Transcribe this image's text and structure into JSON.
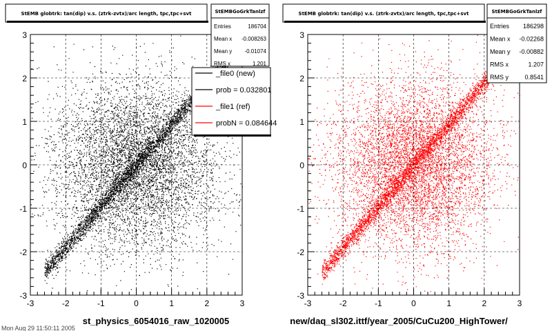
{
  "charts": [
    {
      "id": "left",
      "title": "StEMB globtrk: tan(dip) v.s. (ztrk-zvtx)/arc length, tpc,tpc+svt",
      "xlabel": "st_physics_6054016_raw_1020005",
      "stats": {
        "header": "StEMBGoGrkTanlzf",
        "rows": [
          {
            "label": "Entries",
            "value": "186704"
          },
          {
            "label": "Mean x",
            "value": "-0.008263"
          },
          {
            "label": "Mean y",
            "value": "-0.01074"
          },
          {
            "label": "RMS x",
            "value": "1.201"
          }
        ]
      },
      "legend": {
        "entries": [
          {
            "label": "_file0 (new)",
            "color": "#000000"
          },
          {
            "label": "prob = 0.032801",
            "color": "#000000"
          },
          {
            "label": "_file1 (ref)",
            "color": "#ff0000"
          },
          {
            "label": "probN = 0.084644",
            "color": "#ff0000"
          }
        ]
      },
      "point_color": "#000000"
    },
    {
      "id": "right",
      "title": "StEMB globtrk: tan(dip) v.s. (ztrk-zvtx)/arc length, tpc,tpc+svt",
      "xlabel": "new/daq_sl302.ittf/year_2005/CuCu200_HighTower/",
      "stats": {
        "header": "StEMBGoGrkTanlzf",
        "rows": [
          {
            "label": "Entries",
            "value": "186298"
          },
          {
            "label": "Mean x",
            "value": "-0.02268"
          },
          {
            "label": "Mean y",
            "value": "-0.00882"
          },
          {
            "label": "RMS x",
            "value": "1.207"
          },
          {
            "label": "RMS y",
            "value": "0.8541"
          }
        ]
      },
      "point_color": "#ff0000"
    }
  ],
  "footer_text": "Mon Aug 29 11:50:11 2005",
  "chart_data": [
    {
      "type": "scatter",
      "title": "StEMB globtrk: tan(dip) v.s. (ztrk-zvtx)/arc length, tpc,tpc+svt",
      "xlabel": "st_physics_6054016_raw_1020005",
      "ylabel": "",
      "xlim": [
        -3,
        3
      ],
      "ylim": [
        -3,
        3
      ],
      "xticks": [
        -3,
        -2,
        -1,
        0,
        1,
        2,
        3
      ],
      "yticks": [
        -3,
        -2,
        -1,
        0,
        1,
        2,
        3
      ],
      "grid": true,
      "entries": 186704,
      "mean_x": -0.008263,
      "mean_y": -0.01074,
      "rms_x": 1.201,
      "color": "#000000"
    },
    {
      "type": "scatter",
      "title": "StEMB globtrk: tan(dip) v.s. (ztrk-zvtx)/arc length, tpc,tpc+svt",
      "xlabel": "new/daq_sl302.ittf/year_2005/CuCu200_HighTower/",
      "ylabel": "",
      "xlim": [
        -3,
        3
      ],
      "ylim": [
        -3,
        3
      ],
      "xticks": [
        -3,
        -2,
        -1,
        0,
        1,
        2,
        3
      ],
      "yticks": [
        -3,
        -2,
        -1,
        0,
        1,
        2,
        3
      ],
      "grid": true,
      "entries": 186298,
      "mean_x": -0.02268,
      "mean_y": -0.00882,
      "rms_x": 1.207,
      "rms_y": 0.8541,
      "color": "#ff0000"
    }
  ]
}
